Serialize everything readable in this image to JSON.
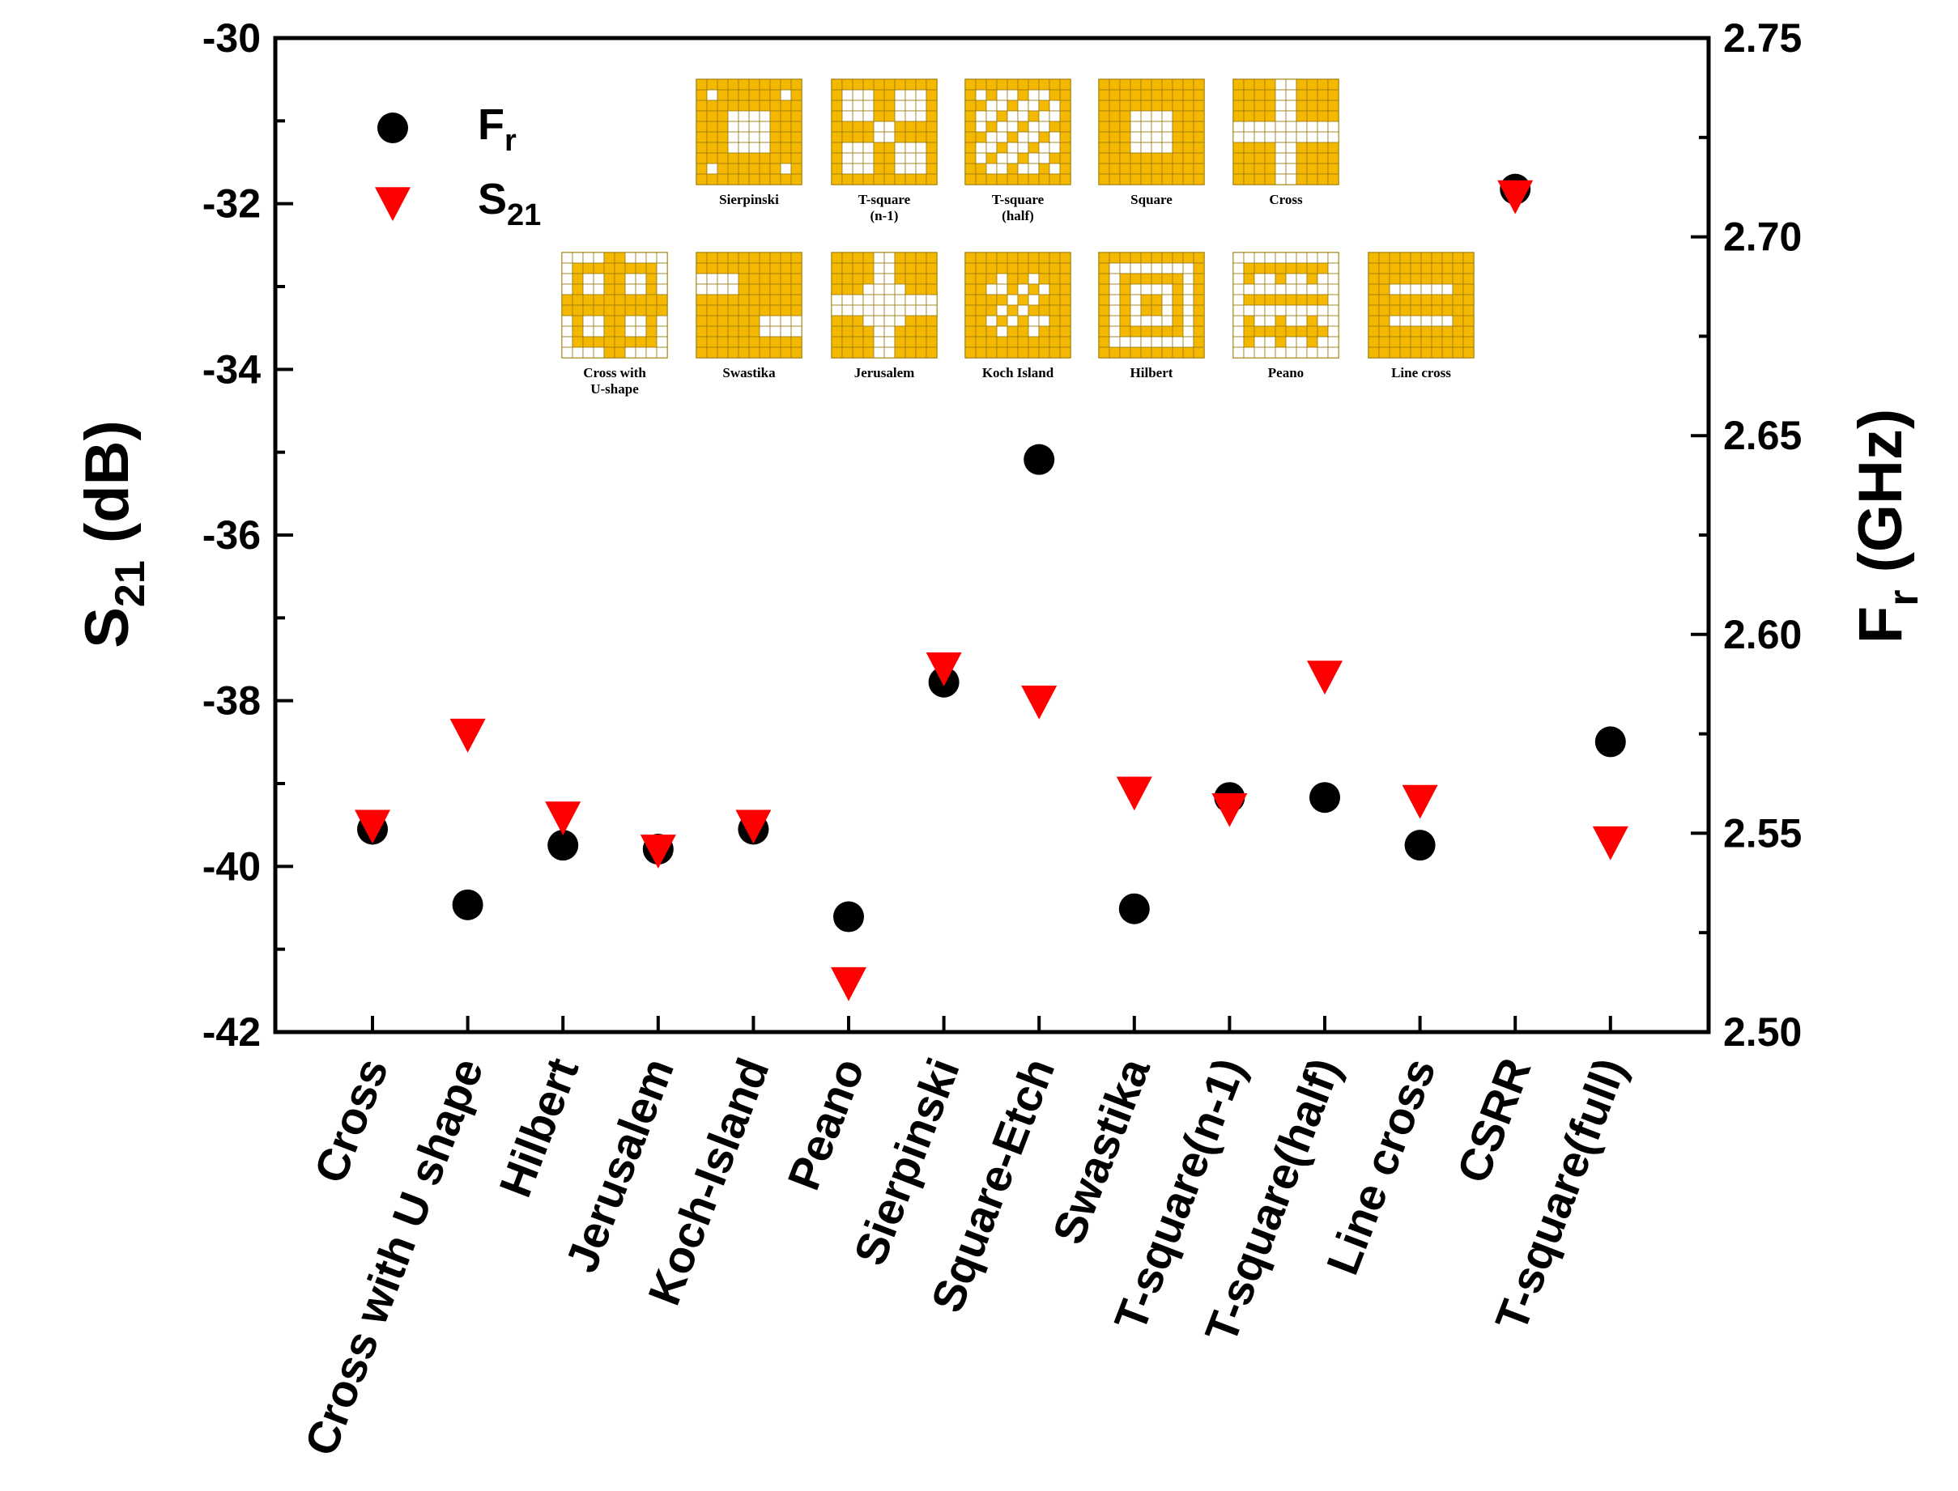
{
  "chart_data": {
    "type": "scatter",
    "categories": [
      "Cross",
      "Cross with U shape",
      "Hilbert",
      "Jerusalem",
      "Koch-Island",
      "Peano",
      "Sierpinski",
      "Square-Etch",
      "Swastika",
      "T-square(n-1)",
      "T-square(half)",
      "Line cross",
      "CSRR",
      "T-square(full)"
    ],
    "left_axis": {
      "label_main": "S",
      "label_sub": "21",
      "label_unit": " (dB)",
      "range": [
        -42,
        -30
      ],
      "major_ticks": [
        -30,
        -32,
        -34,
        -36,
        -38,
        -40,
        -42
      ],
      "minor_step": 1
    },
    "right_axis": {
      "label_main": "F",
      "label_sub": "r",
      "label_unit": " (GHz)",
      "range": [
        2.5,
        2.75
      ],
      "major_ticks": [
        "2.50",
        "2.55",
        "2.60",
        "2.65",
        "2.70",
        "2.75"
      ],
      "minor_step": 0.025
    },
    "series": [
      {
        "name_main": "F",
        "name_sub": "r",
        "axis": "right",
        "marker": "circle",
        "color": "#000000",
        "values": [
          2.551,
          2.532,
          2.547,
          2.546,
          2.551,
          2.529,
          2.588,
          2.644,
          2.531,
          2.559,
          2.559,
          2.547,
          2.712,
          2.573
        ]
      },
      {
        "name_main": "S",
        "name_sub": "21",
        "axis": "left",
        "marker": "triangle-down",
        "color": "#ff0000",
        "values": [
          -39.5,
          -38.4,
          -39.4,
          -39.8,
          -39.5,
          -41.4,
          -37.6,
          -38.0,
          -39.1,
          -39.3,
          -37.7,
          -39.2,
          -31.9,
          -39.7
        ]
      }
    ],
    "grid": false,
    "legend_position": "top-left",
    "inset": {
      "row1": [
        {
          "label": [
            "Sierpinski"
          ],
          "pattern": "sierpinski"
        },
        {
          "label": [
            "T-square",
            "(n-1)"
          ],
          "pattern": "tsq_n1"
        },
        {
          "label": [
            "T-square",
            "(half)"
          ],
          "pattern": "tsq_half"
        },
        {
          "label": [
            "Square"
          ],
          "pattern": "square"
        },
        {
          "label": [
            "Cross"
          ],
          "pattern": "cross"
        }
      ],
      "row2": [
        {
          "label": [
            "Cross with",
            "U-shape"
          ],
          "pattern": "crossu"
        },
        {
          "label": [
            "Swastika"
          ],
          "pattern": "swastika"
        },
        {
          "label": [
            "Jerusalem"
          ],
          "pattern": "jerusalem"
        },
        {
          "label": [
            "Koch Island"
          ],
          "pattern": "koch"
        },
        {
          "label": [
            "Hilbert"
          ],
          "pattern": "hilbert"
        },
        {
          "label": [
            "Peano"
          ],
          "pattern": "peano"
        },
        {
          "label": [
            "Line cross"
          ],
          "pattern": "linecross"
        }
      ],
      "fill_color": "#f5b800",
      "empty_color": "#ffffff"
    }
  }
}
